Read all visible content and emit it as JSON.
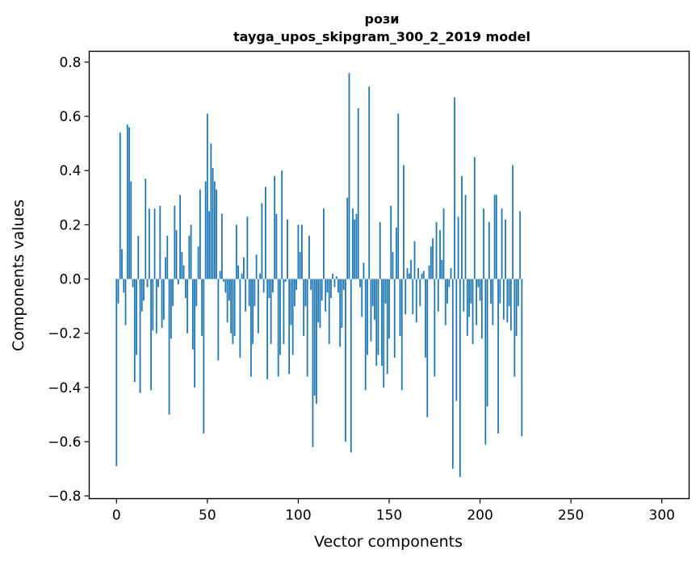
{
  "chart_data": {
    "type": "bar",
    "title": "рози",
    "subtitle": "tayga_upos_skipgram_300_2_2019 model",
    "xlabel": "Vector components",
    "ylabel": "Components values",
    "xlim": [
      -15,
      315
    ],
    "ylim": [
      -0.81,
      0.84
    ],
    "xticks": [
      0,
      50,
      100,
      150,
      200,
      250,
      300
    ],
    "yticks": [
      -0.8,
      -0.6,
      -0.4,
      -0.2,
      0.0,
      0.2,
      0.4,
      0.6,
      0.8
    ],
    "ytick_labels": [
      "−0.8",
      "−0.6",
      "−0.4",
      "−0.2",
      "0.0",
      "0.2",
      "0.4",
      "0.6",
      "0.8"
    ],
    "bar_color": "#1f77b4",
    "values": [
      -0.69,
      -0.09,
      0.54,
      0.11,
      -0.05,
      -0.17,
      0.57,
      0.56,
      0.36,
      -0.03,
      -0.38,
      -0.28,
      0.16,
      -0.42,
      -0.12,
      -0.08,
      0.37,
      -0.03,
      0.26,
      -0.41,
      -0.19,
      0.26,
      -0.2,
      -0.03,
      0.27,
      -0.18,
      -0.15,
      0.08,
      0.16,
      -0.5,
      -0.22,
      -0.1,
      0.27,
      0.18,
      -0.02,
      0.31,
      0.1,
      0.05,
      -0.07,
      -0.2,
      0.16,
      0.2,
      -0.26,
      -0.4,
      -0.1,
      0.12,
      0.33,
      -0.21,
      -0.57,
      0.36,
      0.61,
      0.25,
      0.5,
      0.41,
      0.36,
      0.33,
      -0.3,
      0.03,
      0.24,
      -0.01,
      -0.05,
      -0.16,
      -0.08,
      -0.2,
      -0.24,
      -0.21,
      0.2,
      0.05,
      -0.29,
      0.02,
      0.08,
      -0.12,
      0.23,
      -0.1,
      -0.36,
      -0.24,
      -0.1,
      0.09,
      -0.2,
      0.02,
      0.28,
      -0.05,
      0.34,
      -0.37,
      -0.07,
      -0.24,
      -0.05,
      0.38,
      0.24,
      -0.36,
      -0.28,
      0.4,
      -0.24,
      -0.01,
      0.22,
      -0.35,
      -0.17,
      -0.28,
      -0.1,
      -0.04,
      0.2,
      0.1,
      0.2,
      -0.21,
      -0.1,
      -0.36,
      0.16,
      -0.04,
      -0.62,
      -0.43,
      -0.46,
      -0.16,
      -0.18,
      -0.08,
      0.26,
      -0.12,
      -0.05,
      -0.24,
      -0.07,
      0.02,
      -0.03,
      0.01,
      -0.05,
      -0.25,
      -0.18,
      -0.04,
      -0.6,
      0.3,
      0.76,
      -0.64,
      0.26,
      0.22,
      0.24,
      0.63,
      -0.03,
      -0.14,
      0.06,
      -0.41,
      -0.28,
      0.71,
      -0.23,
      -0.1,
      -0.15,
      -0.32,
      -0.28,
      0.21,
      -0.32,
      -0.4,
      -0.09,
      -0.35,
      -0.22,
      0.27,
      0.1,
      -0.29,
      0.19,
      0.61,
      -0.21,
      -0.41,
      0.42,
      -0.13,
      0.04,
      0.02,
      0.07,
      -0.13,
      0.14,
      -0.16,
      0.04,
      -0.1,
      0.02,
      0.03,
      -0.29,
      -0.51,
      0.05,
      0.12,
      0.15,
      -0.36,
      0.21,
      -0.12,
      0.18,
      0.07,
      0.26,
      -0.17,
      -0.09,
      -0.03,
      0.04,
      -0.7,
      0.67,
      -0.45,
      0.23,
      -0.73,
      0.38,
      -0.12,
      0.31,
      -0.21,
      -0.14,
      -0.09,
      -0.24,
      0.45,
      -0.17,
      -0.03,
      -0.08,
      -0.22,
      0.26,
      -0.61,
      -0.47,
      0.21,
      -0.09,
      -0.17,
      0.31,
      0.31,
      -0.57,
      -0.09,
      0.26,
      -0.15,
      0.22,
      -0.16,
      -0.1,
      -0.19,
      0.42,
      -0.36,
      -0.21,
      -0.1,
      0.25,
      -0.58
    ]
  }
}
